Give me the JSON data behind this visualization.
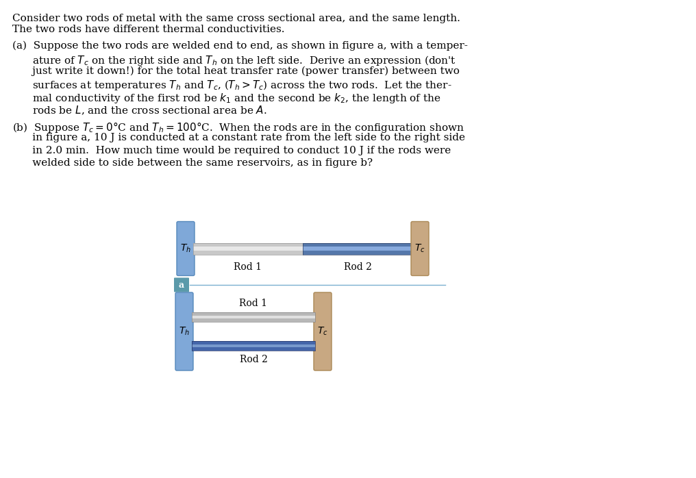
{
  "bg_color": "#ffffff",
  "text_color": "#000000",
  "font_family": "serif",
  "title_lines": [
    "Consider two rods of metal with the same cross sectional area, and the same length.",
    "The two rods have different thermal conductivities."
  ],
  "part_a_lines": [
    "(a)  Suppose the two rods are welded end to end, as shown in figure a, with a temper-",
    "      ature of $T_c$ on the right side and $T_h$ on the left side.  Derive an expression (don’t",
    "      just write it down!) for the total heat transfer rate (power transfer) between two",
    "      surfaces at temperatures $T_h$ and $T_c$, $(T_h > T_c)$ across the two rods.  Let the ther-",
    "      mal conductivity of the first rod be $k_1$ and the second be $k_2$, the length of the",
    "      rods be $L$, and the cross sectional area be $A$."
  ],
  "part_b_lines": [
    "(b)  Suppose $T_c = 0\\degree$C and $T_h = 100\\degree$C.  When the rods are in the configuration shown",
    "      in figure a, 10 J is conducted at a constant rate from the left side to the right side",
    "      in 2.0 min.  How much time would be required to conduct 10 J if the rods were",
    "      welded side to side between the same reservoirs, as in figure b?"
  ],
  "blue_reservoir_color": "#7fa8d8",
  "blue_rod_color": "#a8c4e0",
  "blue_rod_highlight": "#d0e4f4",
  "brown_reservoir_color": "#c8a882",
  "rod1_gray_color": "#d0d0d0",
  "rod1_gray_light": "#e8e8e8",
  "rod2_blue_color": "#6699cc",
  "rod2_blue_light": "#88aadd",
  "rod2_blue_dark": "#4477aa",
  "divider_color": "#7ab0d0",
  "fig_a_label": "figure a (end-to-end)",
  "fig_b_label": "figure b (side-by-side)",
  "label_a_bg": "#5b9aaa",
  "label_a_text": "#ffffff"
}
